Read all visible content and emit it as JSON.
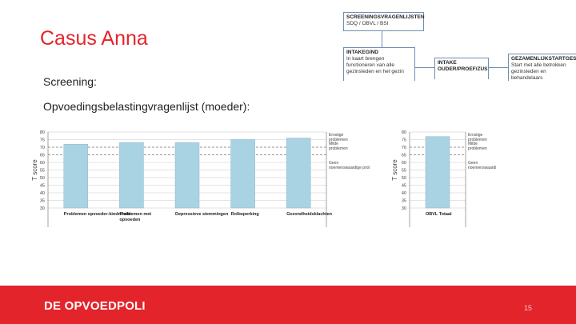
{
  "slide": {
    "title": "Casus Anna",
    "screening_label": "Screening:",
    "chart_label": "Opvoedingsbelastingvragenlijst (moeder):",
    "page_number": "15"
  },
  "flow": {
    "box1": {
      "title": "SCREENINGSVRAGENLIJSTEN",
      "line1": "SDQ / OBVL / BSI"
    },
    "box2": {
      "title": "INTAKEGIND",
      "line1": "In kaart brengen",
      "line2": "functioneren van alle",
      "line3": "gezinsleden en het gezin"
    },
    "box3": {
      "title": "INTAKE",
      "line1": "OUDER/PROEF/ZUS"
    },
    "box4": {
      "title": "GEZAMENLIJKSTARTGESPREK",
      "line1": "Start met alle betrokken",
      "line2": "gezinsleden en behandelaars"
    }
  },
  "footer": {
    "logo": "DE OPVOEDPOLI"
  },
  "colors": {
    "accent": "#e3242b",
    "bar": "#a9d3e3",
    "bar_stroke": "#8db6c8",
    "grid": "#c8c8c8",
    "box_border": "#6f8fb4"
  },
  "chart_data": [
    {
      "type": "bar",
      "ylabel": "T score",
      "ylim": [
        30,
        80
      ],
      "yticks": [
        30,
        35,
        40,
        45,
        50,
        55,
        60,
        65,
        70,
        75,
        80
      ],
      "categories": [
        "Problemen opvoeder-kindrelatie",
        "Problemen met opvoeden",
        "Depressieve stemmingen",
        "Rolbeperking",
        "Gezondheidsklachten"
      ],
      "values": [
        72,
        73,
        73,
        75,
        76
      ],
      "reference_lines": [
        70,
        65
      ],
      "annotations": [
        "Ernstige problemen",
        "Milde problemen",
        "Geen noemenswaardige problemen"
      ]
    },
    {
      "type": "bar",
      "ylabel": "T score",
      "ylim": [
        30,
        80
      ],
      "yticks": [
        30,
        35,
        40,
        45,
        50,
        55,
        60,
        65,
        70,
        75,
        80
      ],
      "categories": [
        "OBVL Totaal"
      ],
      "values": [
        77
      ],
      "reference_lines": [
        70,
        65
      ],
      "annotations": [
        "Ernstige problemen",
        "Milde problemen",
        "Geen noemenswaardige problemen"
      ]
    }
  ]
}
